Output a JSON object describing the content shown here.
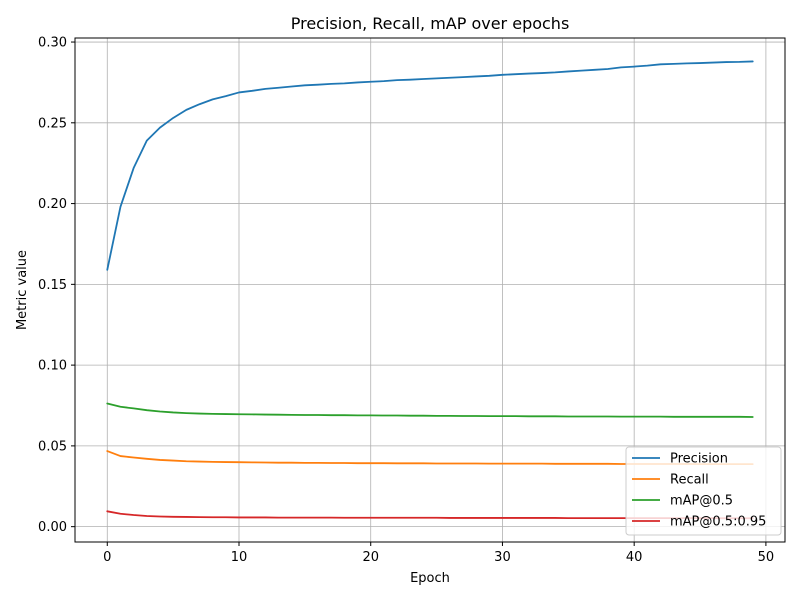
{
  "chart_data": {
    "type": "line",
    "title": "Precision, Recall, mAP over epochs",
    "xlabel": "Epoch",
    "ylabel": "Metric value",
    "xlim": [
      -2.45,
      51.45
    ],
    "ylim": [
      -0.0095,
      0.3025
    ],
    "xticks": [
      0,
      10,
      20,
      30,
      40,
      50
    ],
    "yticks": [
      0.0,
      0.05,
      0.1,
      0.15,
      0.2,
      0.25,
      0.3
    ],
    "ytick_labels": [
      "0.00",
      "0.05",
      "0.10",
      "0.15",
      "0.20",
      "0.25",
      "0.30"
    ],
    "grid": true,
    "legend_position": "lower-right",
    "x": [
      0,
      1,
      2,
      3,
      4,
      5,
      6,
      7,
      8,
      9,
      10,
      11,
      12,
      13,
      14,
      15,
      16,
      17,
      18,
      19,
      20,
      21,
      22,
      23,
      24,
      25,
      26,
      27,
      28,
      29,
      30,
      31,
      32,
      33,
      34,
      35,
      36,
      37,
      38,
      39,
      40,
      41,
      42,
      43,
      44,
      45,
      46,
      47,
      48,
      49
    ],
    "series": [
      {
        "name": "Precision",
        "color": "#1f77b4",
        "values": [
          0.159,
          0.198,
          0.222,
          0.239,
          0.247,
          0.253,
          0.258,
          0.2615,
          0.2645,
          0.2665,
          0.2688,
          0.2698,
          0.271,
          0.2717,
          0.2725,
          0.2732,
          0.2736,
          0.2741,
          0.2744,
          0.275,
          0.2754,
          0.2758,
          0.2764,
          0.2767,
          0.2771,
          0.2775,
          0.2779,
          0.2783,
          0.2787,
          0.2791,
          0.2797,
          0.2801,
          0.2805,
          0.2808,
          0.2812,
          0.2818,
          0.2823,
          0.2828,
          0.2833,
          0.2843,
          0.2848,
          0.2854,
          0.2862,
          0.2865,
          0.2868,
          0.287,
          0.2873,
          0.2876,
          0.2877,
          0.288
        ]
      },
      {
        "name": "Recall",
        "color": "#ff7f0e",
        "values": [
          0.0468,
          0.0437,
          0.0428,
          0.042,
          0.0413,
          0.0409,
          0.0405,
          0.0403,
          0.0401,
          0.04,
          0.0399,
          0.0398,
          0.0397,
          0.0396,
          0.0396,
          0.0395,
          0.0395,
          0.0394,
          0.0394,
          0.0393,
          0.0393,
          0.0393,
          0.0392,
          0.0392,
          0.0392,
          0.0391,
          0.0391,
          0.0391,
          0.0391,
          0.039,
          0.039,
          0.039,
          0.039,
          0.039,
          0.0389,
          0.0389,
          0.0389,
          0.0389,
          0.0389,
          0.0388,
          0.0388,
          0.0388,
          0.0388,
          0.0388,
          0.0388,
          0.0387,
          0.0387,
          0.0387,
          0.0387,
          0.0387
        ]
      },
      {
        "name": "mAP@0.5",
        "color": "#2ca02c",
        "values": [
          0.0762,
          0.0742,
          0.0732,
          0.0721,
          0.0713,
          0.0707,
          0.0703,
          0.07,
          0.0698,
          0.0697,
          0.0696,
          0.0695,
          0.0694,
          0.0693,
          0.0692,
          0.0691,
          0.0691,
          0.069,
          0.069,
          0.0689,
          0.0689,
          0.0688,
          0.0688,
          0.0687,
          0.0687,
          0.0686,
          0.0686,
          0.0685,
          0.0685,
          0.0684,
          0.0684,
          0.0684,
          0.0683,
          0.0683,
          0.0683,
          0.0682,
          0.0682,
          0.0682,
          0.0682,
          0.0681,
          0.0681,
          0.0681,
          0.0681,
          0.068,
          0.068,
          0.068,
          0.068,
          0.068,
          0.068,
          0.0679
        ]
      },
      {
        "name": "mAP@0.5:0.95",
        "color": "#d62728",
        "values": [
          0.0095,
          0.008,
          0.0072,
          0.0066,
          0.0063,
          0.0061,
          0.006,
          0.0059,
          0.0058,
          0.0058,
          0.0057,
          0.0057,
          0.0057,
          0.0056,
          0.0056,
          0.0056,
          0.0056,
          0.0056,
          0.0055,
          0.0055,
          0.0055,
          0.0055,
          0.0055,
          0.0055,
          0.0055,
          0.0055,
          0.0054,
          0.0054,
          0.0054,
          0.0054,
          0.0054,
          0.0054,
          0.0054,
          0.0054,
          0.0054,
          0.0053,
          0.0053,
          0.0053,
          0.0053,
          0.0053,
          0.0053,
          0.0053,
          0.0053,
          0.0053,
          0.0053,
          0.0053,
          0.0053,
          0.0052,
          0.0052,
          0.0052
        ]
      }
    ]
  }
}
